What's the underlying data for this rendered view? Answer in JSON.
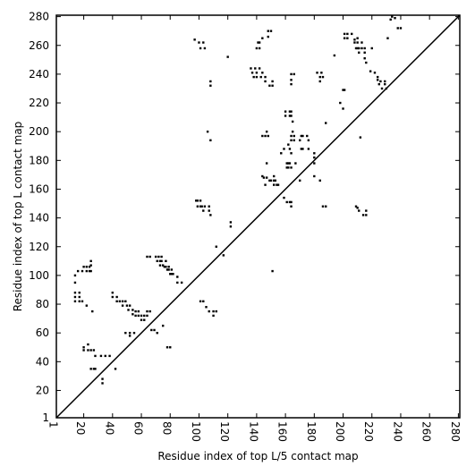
{
  "chart_data": {
    "type": "scatter",
    "title": "",
    "xlabel": "Residue index of top L/5 contact map",
    "ylabel": "Residue index of top L contact map",
    "xlim": [
      1,
      281
    ],
    "ylim": [
      1,
      281
    ],
    "x_ticks": [
      1,
      20,
      40,
      60,
      80,
      100,
      120,
      140,
      160,
      180,
      200,
      220,
      240,
      260,
      280
    ],
    "y_ticks": [
      1,
      20,
      40,
      60,
      80,
      100,
      120,
      140,
      160,
      180,
      200,
      220,
      240,
      260,
      280
    ],
    "x_tick_labels": [
      "1",
      "20",
      "40",
      "60",
      "80",
      "100",
      "120",
      "140",
      "160",
      "180",
      "200",
      "220",
      "240",
      "260",
      "280"
    ],
    "y_tick_labels": [
      "1",
      "20",
      "40",
      "60",
      "80",
      "100",
      "120",
      "140",
      "160",
      "180",
      "200",
      "220",
      "240",
      "260",
      "280"
    ],
    "grid": false,
    "diagonal": {
      "from": [
        1,
        1
      ],
      "to": [
        281,
        281
      ]
    },
    "marker_color": "#000000",
    "series": [
      {
        "values": [
          [
            14,
            100
          ],
          [
            14,
            95
          ],
          [
            14,
            88
          ],
          [
            14,
            85
          ],
          [
            14,
            82
          ],
          [
            16,
            103
          ],
          [
            17,
            88
          ],
          [
            17,
            85
          ],
          [
            17,
            82
          ],
          [
            19,
            103
          ],
          [
            19,
            82
          ],
          [
            20,
            106
          ],
          [
            20,
            50
          ],
          [
            20,
            48
          ],
          [
            22,
            106
          ],
          [
            22,
            103
          ],
          [
            22,
            79
          ],
          [
            23,
            52
          ],
          [
            23,
            48
          ],
          [
            24,
            106
          ],
          [
            24,
            103
          ],
          [
            25,
            110
          ],
          [
            25,
            107
          ],
          [
            25,
            103
          ],
          [
            25,
            48
          ],
          [
            25,
            35
          ],
          [
            26,
            75
          ],
          [
            27,
            48
          ],
          [
            27,
            35
          ],
          [
            28,
            44
          ],
          [
            28,
            35
          ],
          [
            32,
            44
          ],
          [
            33,
            28
          ],
          [
            33,
            25
          ],
          [
            35,
            44
          ],
          [
            38,
            44
          ],
          [
            40,
            88
          ],
          [
            40,
            85
          ],
          [
            42,
            35
          ],
          [
            43,
            85
          ],
          [
            43,
            82
          ],
          [
            45,
            82
          ],
          [
            47,
            82
          ],
          [
            47,
            79
          ],
          [
            49,
            82
          ],
          [
            49,
            60
          ],
          [
            50,
            79
          ],
          [
            51,
            76
          ],
          [
            52,
            79
          ],
          [
            52,
            60
          ],
          [
            52,
            58
          ],
          [
            54,
            76
          ],
          [
            54,
            73
          ],
          [
            55,
            60
          ],
          [
            56,
            75
          ],
          [
            56,
            72
          ],
          [
            58,
            75
          ],
          [
            58,
            72
          ],
          [
            60,
            72
          ],
          [
            60,
            69
          ],
          [
            62,
            72
          ],
          [
            62,
            69
          ],
          [
            64,
            113
          ],
          [
            64,
            75
          ],
          [
            64,
            72
          ],
          [
            66,
            113
          ],
          [
            66,
            75
          ],
          [
            67,
            62
          ],
          [
            69,
            62
          ],
          [
            70,
            113
          ],
          [
            71,
            110
          ],
          [
            71,
            60
          ],
          [
            72,
            113
          ],
          [
            73,
            110
          ],
          [
            73,
            107
          ],
          [
            74,
            113
          ],
          [
            74,
            110
          ],
          [
            75,
            107
          ],
          [
            75,
            65
          ],
          [
            76,
            106
          ],
          [
            77,
            110
          ],
          [
            77,
            106
          ],
          [
            78,
            104
          ],
          [
            78,
            50
          ],
          [
            79,
            106
          ],
          [
            79,
            104
          ],
          [
            80,
            101
          ],
          [
            80,
            50
          ],
          [
            81,
            104
          ],
          [
            81,
            101
          ],
          [
            82,
            101
          ],
          [
            85,
            99
          ],
          [
            85,
            95
          ],
          [
            88,
            95
          ],
          [
            97,
            264
          ],
          [
            98,
            152
          ],
          [
            99,
            152
          ],
          [
            99,
            148
          ],
          [
            100,
            262
          ],
          [
            101,
            258
          ],
          [
            101,
            152
          ],
          [
            101,
            148
          ],
          [
            101,
            82
          ],
          [
            102,
            148
          ],
          [
            103,
            262
          ],
          [
            103,
            145
          ],
          [
            103,
            82
          ],
          [
            104,
            258
          ],
          [
            104,
            148
          ],
          [
            105,
            78
          ],
          [
            106,
            200
          ],
          [
            107,
            148
          ],
          [
            107,
            145
          ],
          [
            107,
            75
          ],
          [
            108,
            235
          ],
          [
            108,
            232
          ],
          [
            108,
            194
          ],
          [
            108,
            142
          ],
          [
            110,
            75
          ],
          [
            110,
            72
          ],
          [
            112,
            120
          ],
          [
            112,
            75
          ],
          [
            117,
            114
          ],
          [
            120,
            252
          ],
          [
            122,
            137
          ],
          [
            122,
            134
          ],
          [
            136,
            244
          ],
          [
            137,
            241
          ],
          [
            138,
            238
          ],
          [
            139,
            244
          ],
          [
            140,
            241
          ],
          [
            140,
            238
          ],
          [
            140,
            258
          ],
          [
            141,
            262
          ],
          [
            142,
            262
          ],
          [
            142,
            258
          ],
          [
            142,
            244
          ],
          [
            143,
            238
          ],
          [
            144,
            265
          ],
          [
            144,
            241
          ],
          [
            144,
            197
          ],
          [
            144,
            169
          ],
          [
            145,
            168
          ],
          [
            146,
            238
          ],
          [
            146,
            235
          ],
          [
            146,
            197
          ],
          [
            146,
            163
          ],
          [
            147,
            200
          ],
          [
            147,
            178
          ],
          [
            147,
            168
          ],
          [
            148,
            270
          ],
          [
            148,
            266
          ],
          [
            148,
            197
          ],
          [
            149,
            232
          ],
          [
            149,
            166
          ],
          [
            150,
            270
          ],
          [
            150,
            166
          ],
          [
            151,
            235
          ],
          [
            151,
            232
          ],
          [
            151,
            103
          ],
          [
            152,
            169
          ],
          [
            152,
            166
          ],
          [
            152,
            163
          ],
          [
            153,
            166
          ],
          [
            154,
            163
          ],
          [
            155,
            163
          ],
          [
            157,
            185
          ],
          [
            159,
            188
          ],
          [
            159,
            154
          ],
          [
            160,
            214
          ],
          [
            160,
            211
          ],
          [
            161,
            178
          ],
          [
            161,
            175
          ],
          [
            161,
            151
          ],
          [
            162,
            191
          ],
          [
            162,
            178
          ],
          [
            162,
            175
          ],
          [
            163,
            214
          ],
          [
            163,
            211
          ],
          [
            163,
            188
          ],
          [
            163,
            178
          ],
          [
            163,
            151
          ],
          [
            164,
            240
          ],
          [
            164,
            236
          ],
          [
            164,
            233
          ],
          [
            164,
            214
          ],
          [
            164,
            211
          ],
          [
            164,
            197
          ],
          [
            164,
            194
          ],
          [
            164,
            185
          ],
          [
            164,
            175
          ],
          [
            164,
            151
          ],
          [
            164,
            148
          ],
          [
            165,
            207
          ],
          [
            165,
            200
          ],
          [
            166,
            240
          ],
          [
            166,
            197
          ],
          [
            166,
            194
          ],
          [
            167,
            178
          ],
          [
            170,
            166
          ],
          [
            170,
            194
          ],
          [
            171,
            197
          ],
          [
            171,
            188
          ],
          [
            172,
            197
          ],
          [
            172,
            188
          ],
          [
            175,
            197
          ],
          [
            176,
            194
          ],
          [
            176,
            188
          ],
          [
            180,
            185
          ],
          [
            180,
            182
          ],
          [
            180,
            178
          ],
          [
            180,
            169
          ],
          [
            182,
            241
          ],
          [
            184,
            238
          ],
          [
            184,
            235
          ],
          [
            184,
            166
          ],
          [
            185,
            241
          ],
          [
            186,
            148
          ],
          [
            186,
            238
          ],
          [
            188,
            206
          ],
          [
            188,
            148
          ],
          [
            194,
            253
          ],
          [
            198,
            220
          ],
          [
            200,
            216
          ],
          [
            200,
            229
          ],
          [
            201,
            268
          ],
          [
            201,
            265
          ],
          [
            201,
            229
          ],
          [
            203,
            268
          ],
          [
            203,
            265
          ],
          [
            206,
            268
          ],
          [
            208,
            264
          ],
          [
            208,
            262
          ],
          [
            209,
            258
          ],
          [
            209,
            148
          ],
          [
            210,
            265
          ],
          [
            210,
            262
          ],
          [
            210,
            258
          ],
          [
            210,
            147
          ],
          [
            211,
            258
          ],
          [
            211,
            255
          ],
          [
            211,
            145
          ],
          [
            212,
            196
          ],
          [
            213,
            262
          ],
          [
            213,
            258
          ],
          [
            214,
            142
          ],
          [
            215,
            258
          ],
          [
            215,
            255
          ],
          [
            215,
            251
          ],
          [
            216,
            248
          ],
          [
            216,
            145
          ],
          [
            216,
            142
          ],
          [
            219,
            242
          ],
          [
            220,
            258
          ],
          [
            222,
            241
          ],
          [
            224,
            238
          ],
          [
            224,
            236
          ],
          [
            225,
            233
          ],
          [
            226,
            235
          ],
          [
            227,
            230
          ],
          [
            229,
            235
          ],
          [
            229,
            233
          ],
          [
            230,
            230
          ],
          [
            231,
            265
          ],
          [
            233,
            278
          ],
          [
            234,
            280
          ],
          [
            236,
            279
          ],
          [
            238,
            272
          ],
          [
            240,
            272
          ]
        ]
      }
    ]
  }
}
